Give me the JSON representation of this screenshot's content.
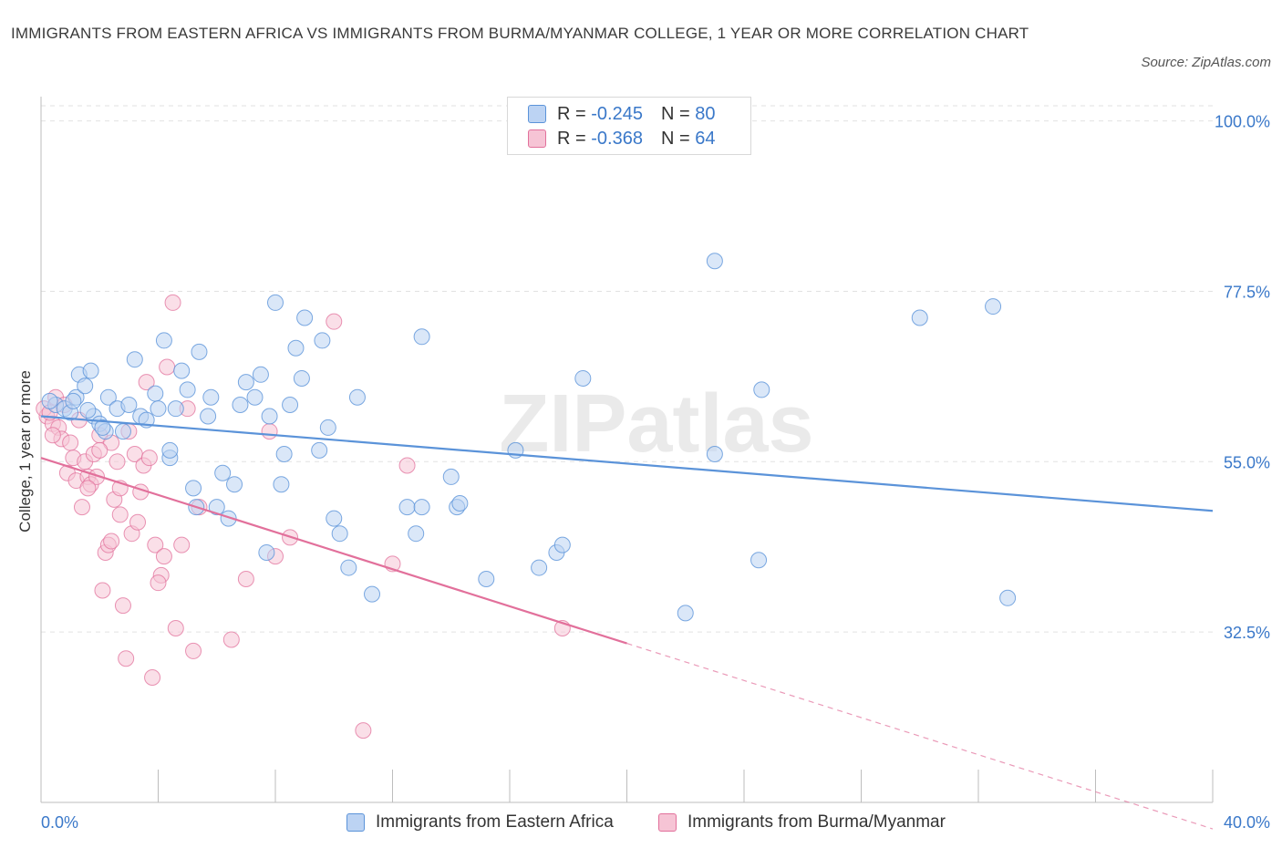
{
  "title": "IMMIGRANTS FROM EASTERN AFRICA VS IMMIGRANTS FROM BURMA/MYANMAR COLLEGE, 1 YEAR OR MORE CORRELATION CHART",
  "source": "Source: ZipAtlas.com",
  "watermark": "ZIPatlas",
  "legend": {
    "rows": [
      {
        "r_label": "R =",
        "r_value": "-0.245",
        "n_label": "N =",
        "n_value": "80"
      },
      {
        "r_label": "R =",
        "r_value": "-0.368",
        "n_label": "N =",
        "n_value": "64"
      }
    ]
  },
  "chart_data": {
    "type": "scatter",
    "xlabel": "",
    "ylabel": "College, 1 year or more",
    "x_tick_labels": [
      "0.0%",
      "40.0%"
    ],
    "y_tick_labels": [
      "100.0%",
      "77.5%",
      "55.0%",
      "32.5%"
    ],
    "y_ticks": [
      100.0,
      77.5,
      55.0,
      32.5
    ],
    "xlim": [
      0,
      40
    ],
    "ylim": [
      10,
      102
    ],
    "grid": true,
    "legend_position": "top-center",
    "colors": {
      "blue": "#5b93d9",
      "blue_fill": "#bcd3f3",
      "pink": "#e2709b",
      "pink_fill": "#f6c4d5",
      "axis_text": "#3a78c9"
    },
    "series": [
      {
        "name": "Immigrants from Eastern Africa",
        "color": "#5b93d9",
        "trend": {
          "x0": 0,
          "y0": 61.0,
          "x1": 40,
          "y1": 48.5
        },
        "points": [
          [
            0.5,
            62.5
          ],
          [
            0.8,
            62.0
          ],
          [
            1.0,
            61.5
          ],
          [
            1.2,
            63.5
          ],
          [
            1.3,
            66.5
          ],
          [
            1.5,
            65.0
          ],
          [
            1.7,
            67.0
          ],
          [
            1.8,
            61.0
          ],
          [
            2.0,
            60.0
          ],
          [
            2.2,
            59.0
          ],
          [
            2.3,
            63.5
          ],
          [
            2.6,
            62.0
          ],
          [
            2.8,
            59.0
          ],
          [
            3.0,
            62.5
          ],
          [
            3.2,
            68.5
          ],
          [
            3.4,
            61.0
          ],
          [
            3.6,
            60.5
          ],
          [
            3.9,
            64.0
          ],
          [
            4.0,
            62.0
          ],
          [
            4.2,
            71.0
          ],
          [
            4.4,
            55.5
          ],
          [
            4.4,
            56.5
          ],
          [
            4.8,
            67.0
          ],
          [
            5.0,
            64.5
          ],
          [
            5.2,
            51.5
          ],
          [
            5.3,
            49.0
          ],
          [
            5.4,
            69.5
          ],
          [
            5.7,
            61.0
          ],
          [
            5.8,
            63.5
          ],
          [
            6.0,
            49.0
          ],
          [
            6.2,
            53.5
          ],
          [
            6.4,
            47.5
          ],
          [
            6.6,
            52.0
          ],
          [
            6.8,
            62.5
          ],
          [
            7.0,
            65.5
          ],
          [
            7.3,
            63.5
          ],
          [
            7.5,
            66.5
          ],
          [
            7.7,
            43.0
          ],
          [
            7.8,
            61.0
          ],
          [
            8.0,
            76.0
          ],
          [
            8.2,
            52.0
          ],
          [
            8.3,
            56.0
          ],
          [
            8.5,
            62.5
          ],
          [
            8.7,
            70.0
          ],
          [
            8.9,
            66.0
          ],
          [
            9.0,
            74.0
          ],
          [
            9.5,
            56.5
          ],
          [
            9.6,
            71.0
          ],
          [
            9.8,
            59.5
          ],
          [
            10.0,
            47.5
          ],
          [
            10.2,
            45.5
          ],
          [
            10.5,
            41.0
          ],
          [
            10.8,
            63.5
          ],
          [
            11.3,
            37.5
          ],
          [
            12.5,
            49.0
          ],
          [
            12.8,
            45.5
          ],
          [
            13.0,
            49.0
          ],
          [
            13.0,
            71.5
          ],
          [
            14.0,
            53.0
          ],
          [
            14.2,
            49.0
          ],
          [
            14.3,
            49.5
          ],
          [
            15.2,
            39.5
          ],
          [
            16.2,
            56.5
          ],
          [
            17.0,
            41.0
          ],
          [
            17.6,
            43.0
          ],
          [
            17.8,
            44.0
          ],
          [
            18.5,
            66.0
          ],
          [
            22.0,
            35.0
          ],
          [
            23.0,
            56.0
          ],
          [
            23.0,
            81.5
          ],
          [
            24.5,
            42.0
          ],
          [
            24.6,
            64.5
          ],
          [
            30.0,
            74.0
          ],
          [
            32.5,
            75.5
          ],
          [
            33.0,
            37.0
          ],
          [
            0.3,
            63.0
          ],
          [
            1.1,
            63.0
          ],
          [
            1.6,
            61.8
          ],
          [
            2.1,
            59.5
          ],
          [
            4.6,
            62.0
          ]
        ]
      },
      {
        "name": "Immigrants from Burma/Myanmar",
        "color": "#e2709b",
        "trend": {
          "x0": 0,
          "y0": 55.5,
          "x1": 20,
          "y1": 31.0,
          "dash_to_x": 40,
          "dash_to_y": 6.5
        },
        "points": [
          [
            0.2,
            61.0
          ],
          [
            0.4,
            60.0
          ],
          [
            0.5,
            63.5
          ],
          [
            0.6,
            59.5
          ],
          [
            0.7,
            58.0
          ],
          [
            0.8,
            62.5
          ],
          [
            0.9,
            53.5
          ],
          [
            1.0,
            57.5
          ],
          [
            1.1,
            55.5
          ],
          [
            1.2,
            52.5
          ],
          [
            1.3,
            60.5
          ],
          [
            1.4,
            49.0
          ],
          [
            1.5,
            55.0
          ],
          [
            1.6,
            53.0
          ],
          [
            1.7,
            52.0
          ],
          [
            1.8,
            56.0
          ],
          [
            1.9,
            53.0
          ],
          [
            2.0,
            58.5
          ],
          [
            2.1,
            38.0
          ],
          [
            2.2,
            43.0
          ],
          [
            2.3,
            44.0
          ],
          [
            2.4,
            57.5
          ],
          [
            2.5,
            50.0
          ],
          [
            2.6,
            55.0
          ],
          [
            2.7,
            51.5
          ],
          [
            2.8,
            36.0
          ],
          [
            3.0,
            59.0
          ],
          [
            3.1,
            45.5
          ],
          [
            3.2,
            56.0
          ],
          [
            3.4,
            51.0
          ],
          [
            3.5,
            54.5
          ],
          [
            3.6,
            65.5
          ],
          [
            3.7,
            55.5
          ],
          [
            3.9,
            44.0
          ],
          [
            4.1,
            40.0
          ],
          [
            4.2,
            42.5
          ],
          [
            4.3,
            67.5
          ],
          [
            4.5,
            76.0
          ],
          [
            4.6,
            33.0
          ],
          [
            4.8,
            44.0
          ],
          [
            5.0,
            62.0
          ],
          [
            5.2,
            30.0
          ],
          [
            5.4,
            49.0
          ],
          [
            6.5,
            31.5
          ],
          [
            7.0,
            39.5
          ],
          [
            7.8,
            59.0
          ],
          [
            8.0,
            42.5
          ],
          [
            8.5,
            45.0
          ],
          [
            10.0,
            73.5
          ],
          [
            11.0,
            19.5
          ],
          [
            12.0,
            41.5
          ],
          [
            12.5,
            54.5
          ],
          [
            17.8,
            33.0
          ],
          [
            2.9,
            29.0
          ],
          [
            3.8,
            26.5
          ],
          [
            0.1,
            62.0
          ],
          [
            0.3,
            61.5
          ],
          [
            0.4,
            58.5
          ],
          [
            1.6,
            51.5
          ],
          [
            2.0,
            56.5
          ],
          [
            2.4,
            44.5
          ],
          [
            2.7,
            48.0
          ],
          [
            3.3,
            47.0
          ],
          [
            4.0,
            39.0
          ]
        ]
      }
    ]
  }
}
